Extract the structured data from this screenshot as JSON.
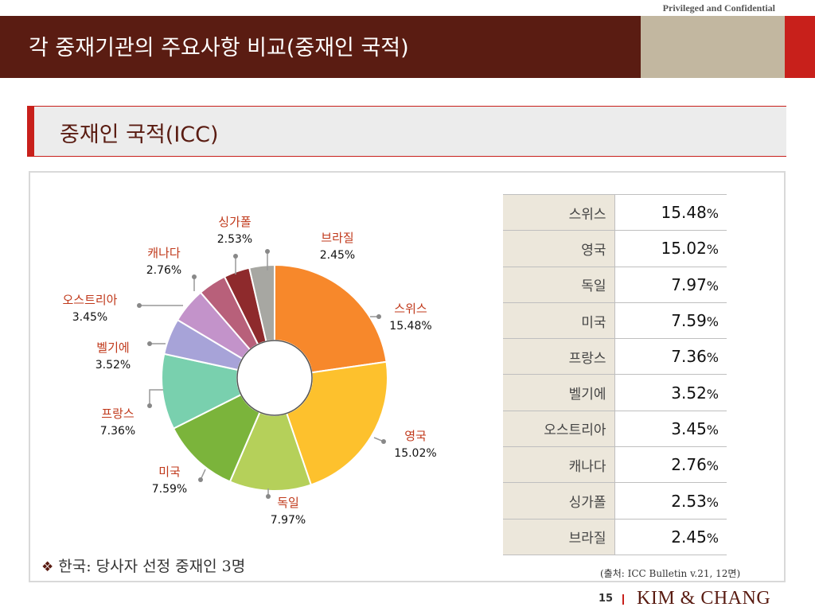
{
  "header": {
    "title": "각 중재기관의 주요사항 비교(중재인 국적)",
    "confidential": "Privileged and Confidential"
  },
  "subheader": {
    "title": "중재인 국적(ICC)"
  },
  "chart_data": {
    "type": "pie",
    "donut": true,
    "categories": [
      "스위스",
      "영국",
      "독일",
      "미국",
      "프랑스",
      "벨기에",
      "오스트리아",
      "캐나다",
      "싱가폴",
      "브라질"
    ],
    "values": [
      15.48,
      15.02,
      7.97,
      7.59,
      7.36,
      3.52,
      3.45,
      2.76,
      2.53,
      2.45
    ],
    "value_labels": [
      "15.48%",
      "15.02%",
      "7.97%",
      "7.59%",
      "7.36%",
      "3.52%",
      "3.45%",
      "2.76%",
      "2.53%",
      "2.45%"
    ],
    "colors": [
      "#f7882b",
      "#fdc12d",
      "#b5d05a",
      "#7bb43b",
      "#79d0ae",
      "#a7a3d8",
      "#c393ca",
      "#b8607a",
      "#8e2a2c",
      "#a7a7a2"
    ]
  },
  "table": {
    "rows": [
      {
        "name": "스위스",
        "value": "15.48",
        "unit": "%"
      },
      {
        "name": "영국",
        "value": "15.02",
        "unit": "%"
      },
      {
        "name": "독일",
        "value": "7.97",
        "unit": "%"
      },
      {
        "name": "미국",
        "value": "7.59",
        "unit": "%"
      },
      {
        "name": "프랑스",
        "value": "7.36",
        "unit": "%"
      },
      {
        "name": "벨기에",
        "value": "3.52",
        "unit": "%"
      },
      {
        "name": "오스트리아",
        "value": "3.45",
        "unit": "%"
      },
      {
        "name": "캐나다",
        "value": "2.76",
        "unit": "%"
      },
      {
        "name": "싱가폴",
        "value": "2.53",
        "unit": "%"
      },
      {
        "name": "브라질",
        "value": "2.45",
        "unit": "%"
      }
    ]
  },
  "note": {
    "bullet": "❖",
    "text": "한국: 당사자 선정 중재인 3명"
  },
  "source": "(출처: ICC Bulletin v.21, 12면)",
  "footer": {
    "page": "15",
    "logo": "KIM & CHANG"
  },
  "colors": {
    "brand": "#5a1c12",
    "accent": "#c8201b",
    "tan": "#c2b7a0"
  }
}
